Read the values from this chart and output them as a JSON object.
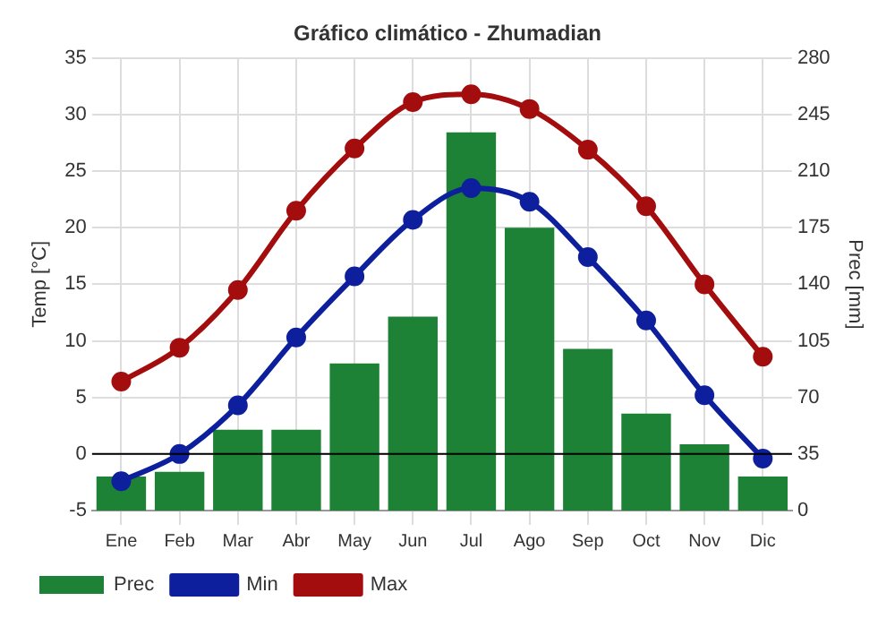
{
  "chart_data": {
    "type": "bar",
    "title": "Gráfico climático - Zhumadian",
    "categories": [
      "Ene",
      "Feb",
      "Mar",
      "Abr",
      "May",
      "Jun",
      "Jul",
      "Ago",
      "Sep",
      "Oct",
      "Nov",
      "Dic"
    ],
    "series": [
      {
        "name": "Prec",
        "axis": "y2",
        "color": "#1e8236",
        "values": [
          21,
          24,
          50,
          50,
          91,
          120,
          234,
          175,
          100,
          60,
          41,
          21
        ]
      },
      {
        "name": "Min",
        "type": "line",
        "axis": "y",
        "color": "#0d1f9c",
        "values": [
          -2.4,
          0,
          4.3,
          10.3,
          15.7,
          20.7,
          23.5,
          22.3,
          17.4,
          11.8,
          5.2,
          -0.4
        ]
      },
      {
        "name": "Max",
        "type": "line",
        "axis": "y",
        "color": "#a30d0d",
        "values": [
          6.4,
          9.4,
          14.5,
          21.5,
          27,
          31.1,
          31.8,
          30.5,
          26.9,
          21.9,
          15,
          8.6
        ]
      }
    ],
    "ylabel": "Temp [°C]",
    "y2label": "Prec [mm]",
    "ylim": [
      -5,
      35
    ],
    "yticks": [
      -5,
      0,
      5,
      10,
      15,
      20,
      25,
      30,
      35
    ],
    "y2lim": [
      0,
      280
    ],
    "y2ticks": [
      0,
      35,
      70,
      105,
      140,
      175,
      210,
      245,
      280
    ],
    "ref_lines": [
      {
        "axis": "y",
        "value": 0,
        "color": "#000000"
      }
    ],
    "grid": true,
    "legend": "bottom left",
    "marker": "circle",
    "line_style": "solid"
  }
}
